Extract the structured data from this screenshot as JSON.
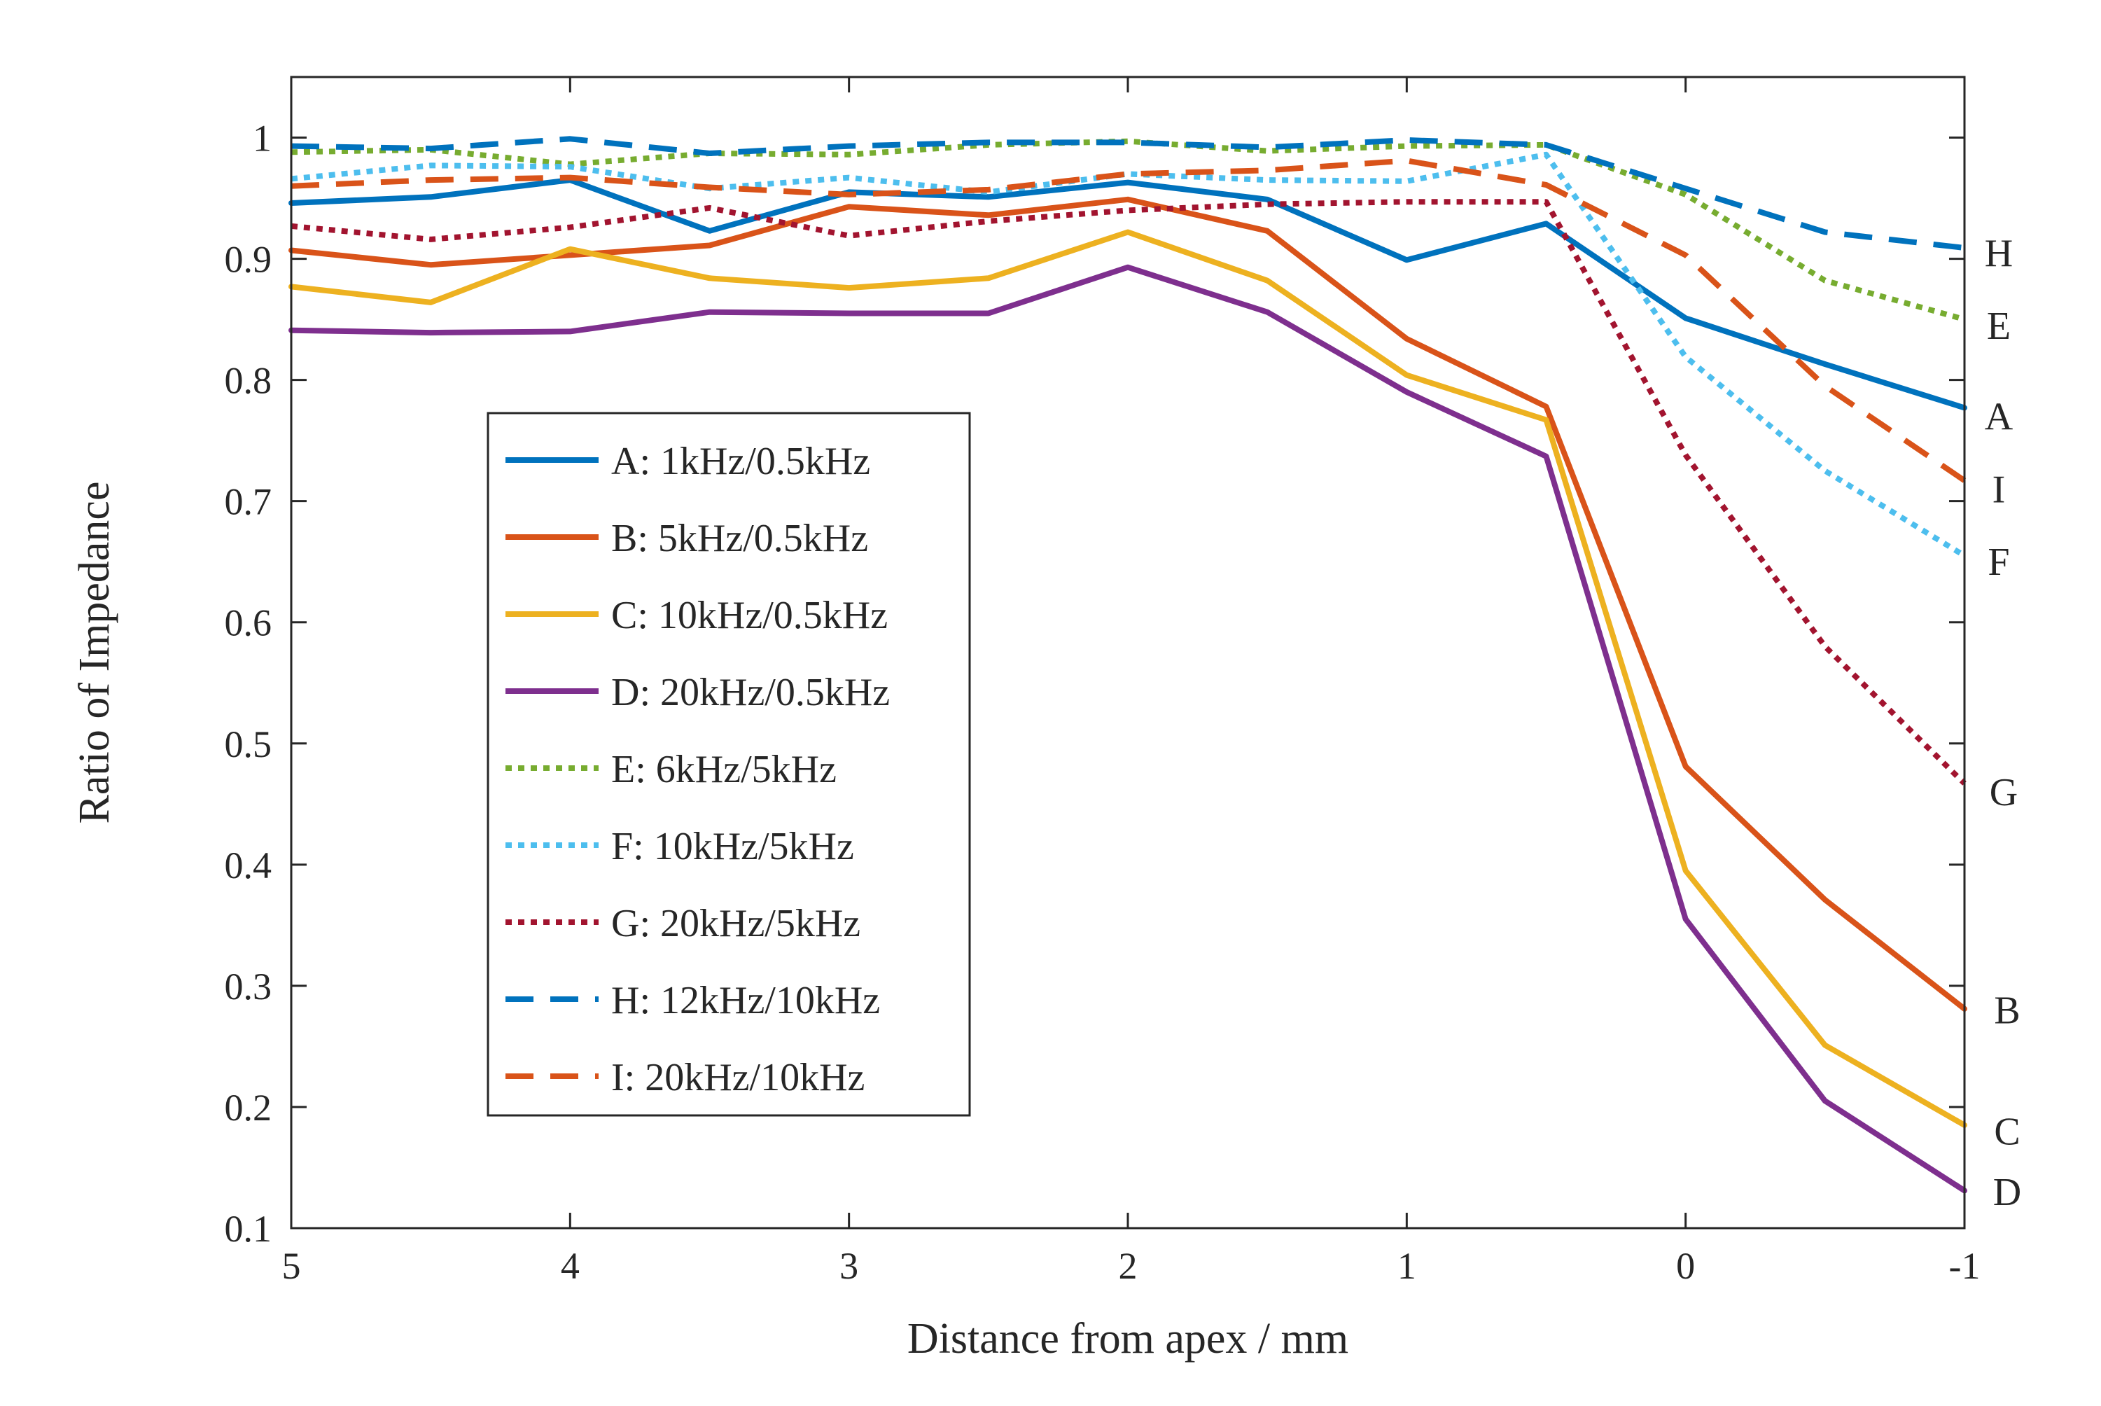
{
  "chart_data": {
    "type": "line",
    "title": "",
    "xlabel": "Distance from apex / mm",
    "ylabel": "Ratio of Impedance",
    "xlim": [
      5,
      -1
    ],
    "ylim": [
      0.1,
      1.05
    ],
    "x_reversed": true,
    "xticks": [
      5,
      4,
      3,
      2,
      1,
      0,
      -1
    ],
    "xtick_labels": [
      "5",
      "4",
      "3",
      "2",
      "1",
      "0",
      "-1"
    ],
    "yticks": [
      0.1,
      0.2,
      0.3,
      0.4,
      0.5,
      0.6,
      0.7,
      0.8,
      0.9,
      1
    ],
    "ytick_labels": [
      "0.1",
      "0.2",
      "0.3",
      "0.4",
      "0.5",
      "0.6",
      "0.7",
      "0.8",
      "0.9",
      "1"
    ],
    "grid": false,
    "legend_position": "center-left",
    "x": [
      5,
      4.5,
      4,
      3.5,
      3,
      2.5,
      2,
      1.5,
      1,
      0.5,
      0,
      -0.5,
      -1
    ],
    "series": [
      {
        "name": "A: 1kHz/0.5kHz",
        "end_label": "A",
        "color": "#0072BD",
        "style": "solid",
        "values": [
          0.946,
          0.951,
          0.965,
          0.923,
          0.955,
          0.951,
          0.963,
          0.949,
          0.899,
          0.929,
          0.851,
          0.813,
          0.777
        ]
      },
      {
        "name": "B: 5kHz/0.5kHz",
        "end_label": "B",
        "color": "#D95319",
        "style": "solid",
        "values": [
          0.907,
          0.895,
          0.903,
          0.911,
          0.943,
          0.936,
          0.949,
          0.923,
          0.834,
          0.778,
          0.481,
          0.371,
          0.281
        ]
      },
      {
        "name": "C: 10kHz/0.5kHz",
        "end_label": "C",
        "color": "#EDB120",
        "style": "solid",
        "values": [
          0.877,
          0.864,
          0.908,
          0.884,
          0.876,
          0.884,
          0.922,
          0.882,
          0.804,
          0.767,
          0.395,
          0.251,
          0.185
        ]
      },
      {
        "name": "D: 20kHz/0.5kHz",
        "end_label": "D",
        "color": "#7E2F8E",
        "style": "solid",
        "values": [
          0.841,
          0.839,
          0.84,
          0.856,
          0.855,
          0.855,
          0.893,
          0.856,
          0.79,
          0.737,
          0.355,
          0.205,
          0.131
        ]
      },
      {
        "name": "E: 6kHz/5kHz",
        "end_label": "E",
        "color": "#77AC30",
        "style": "dotted",
        "values": [
          0.988,
          0.99,
          0.978,
          0.987,
          0.986,
          0.994,
          0.997,
          0.989,
          0.993,
          0.994,
          0.953,
          0.882,
          0.85
        ]
      },
      {
        "name": "F: 10kHz/5kHz",
        "end_label": "F",
        "color": "#4DBEEE",
        "style": "dotted",
        "values": [
          0.966,
          0.977,
          0.976,
          0.958,
          0.967,
          0.955,
          0.97,
          0.965,
          0.964,
          0.986,
          0.819,
          0.725,
          0.655
        ]
      },
      {
        "name": "G: 20kHz/5kHz",
        "end_label": "G",
        "color": "#A2142F",
        "style": "dotted",
        "values": [
          0.927,
          0.916,
          0.926,
          0.942,
          0.919,
          0.931,
          0.94,
          0.945,
          0.947,
          0.947,
          0.738,
          0.58,
          0.467
        ]
      },
      {
        "name": "H: 12kHz/10kHz",
        "end_label": "H",
        "color": "#0072BD",
        "style": "dashed",
        "values": [
          0.993,
          0.991,
          0.999,
          0.987,
          0.993,
          0.996,
          0.996,
          0.992,
          0.998,
          0.994,
          0.958,
          0.922,
          0.909
        ]
      },
      {
        "name": "I: 20kHz/10kHz",
        "end_label": "I",
        "color": "#D95319",
        "style": "dashed",
        "values": [
          0.96,
          0.965,
          0.967,
          0.959,
          0.953,
          0.957,
          0.97,
          0.973,
          0.981,
          0.961,
          0.903,
          0.795,
          0.717
        ]
      }
    ]
  }
}
